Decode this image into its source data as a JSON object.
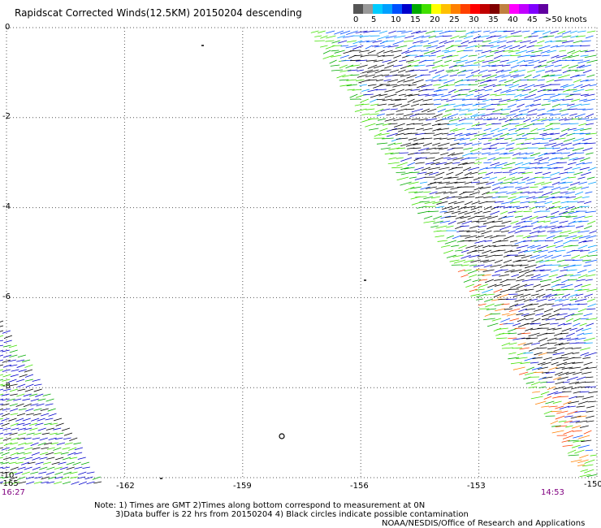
{
  "title": "Rapidscat Corrected Winds(12.5KM) 20150204 descending",
  "legend": {
    "labels": [
      "0",
      "5",
      "10",
      "15",
      "20",
      "25",
      "30",
      "35",
      "40",
      "45",
      ">50 knots"
    ],
    "colors": [
      "#555555",
      "#999999",
      "#00ccff",
      "#00a0ff",
      "#0050ff",
      "#0000cc",
      "#00aa00",
      "#40e000",
      "#ffff00",
      "#ffc000",
      "#ff8000",
      "#ff4000",
      "#ff0000",
      "#c00000",
      "#800000",
      "#c08040",
      "#ff00ff",
      "#c000ff",
      "#8000ff",
      "#6000a0"
    ]
  },
  "map": {
    "lon_ticks": [
      "-165",
      "-162",
      "-159",
      "-156",
      "-153",
      "-150"
    ],
    "lat_ticks": [
      "0",
      "-2",
      "-4",
      "-6",
      "-8",
      "-10"
    ],
    "lon_range": [
      -165,
      -150
    ],
    "lat_range": [
      -10,
      0
    ]
  },
  "times": {
    "left": "16:27",
    "right": "14:53"
  },
  "notes": {
    "line1": "Note: 1) Times are GMT 2)Times along bottom correspond to measurement at 0N",
    "line2": "3)Data buffer is 22 hrs from 20150204 4) Black circles indicate possible contamination"
  },
  "credit": "NOAA/NESDIS/Office of Research and Applications"
}
